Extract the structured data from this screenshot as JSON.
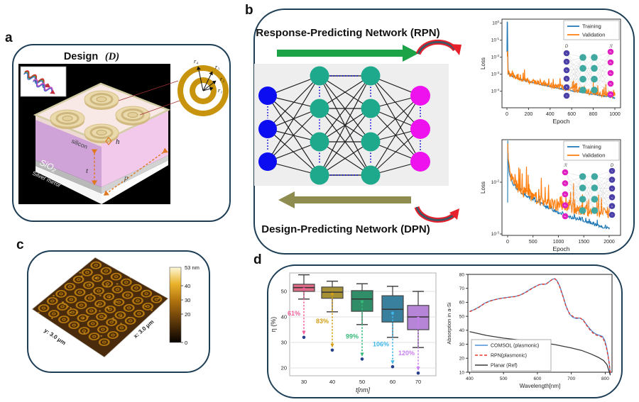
{
  "colors": {
    "panel_border": "#1e3e56",
    "input_node": "#0d0df2",
    "hidden_node": "#1fa98c",
    "output_node": "#ee12ee",
    "rpn_arrow": "#1ca347",
    "dpn_arrow": "#8f8c50",
    "flow_red": "#e8202c",
    "flow_core": "#3f5564",
    "outlier": "#27408b",
    "ring_gold": "#c8940e",
    "dim_orange": "#e07820"
  },
  "panels": {
    "a": {
      "label": "a",
      "title_word": "Design",
      "title_symbol": "(D)",
      "layers": {
        "silicon": "silicon",
        "sio2": "SiO₂",
        "mirror": "Silver mirror"
      },
      "dims": {
        "h": "h",
        "t": "t",
        "p": "p"
      },
      "radii": [
        "r₄",
        "r₃",
        "r₂",
        "r₁"
      ]
    },
    "b": {
      "label": "b",
      "rpn_title": "Response-Predicting Network (RPN)",
      "dpn_title": "Design-Predicting Network (DPN)",
      "network": {
        "input_nodes": 3,
        "hidden_layers": [
          4,
          4
        ],
        "output_nodes": 3
      }
    },
    "c": {
      "label": "c",
      "y_axis_label": "y: 3.0 μm",
      "x_axis_label": "x: 3.0 μm",
      "colorbar": {
        "labels": [
          "53 nm",
          "40",
          "30",
          "20",
          "0"
        ],
        "values": [
          53,
          40,
          30,
          20,
          0
        ],
        "max": 53,
        "unit": "nm"
      }
    },
    "d": {
      "label": "d"
    }
  },
  "chart_data": [
    {
      "id": "rpn_loss",
      "type": "line",
      "title": "",
      "xlabel": "Epoch",
      "ylabel": "Loss",
      "yscale": "log",
      "xlim": [
        -46,
        1053
      ],
      "xticks": [
        0,
        200,
        400,
        600,
        800,
        1000
      ],
      "ytick_exponents": [
        0,
        -1,
        -2,
        -3,
        -4
      ],
      "legend_position": "upper right",
      "series": [
        {
          "name": "Training",
          "color": "#1f77b4",
          "noise": 0.06,
          "points": [
            [
              0,
              0.02
            ],
            [
              2,
              1.15
            ],
            [
              5,
              1.15
            ],
            [
              8,
              0.02
            ],
            [
              12,
              0.0012
            ],
            [
              25,
              0.00085
            ],
            [
              60,
              0.0007
            ],
            [
              100,
              0.00056
            ],
            [
              150,
              0.00044
            ],
            [
              200,
              0.00037
            ],
            [
              300,
              0.00026
            ],
            [
              400,
              0.00019
            ],
            [
              500,
              0.00014
            ],
            [
              600,
              0.000105
            ],
            [
              700,
              8.5e-05
            ],
            [
              800,
              6.5e-05
            ],
            [
              900,
              5.2e-05
            ],
            [
              1000,
              4e-05
            ]
          ]
        },
        {
          "name": "Validation",
          "color": "#ff7f0e",
          "noise": 0.3,
          "points": [
            [
              4,
              0.013
            ],
            [
              7,
              0.009
            ],
            [
              9,
              0.0013
            ],
            [
              25,
              0.00095
            ],
            [
              60,
              0.00078
            ],
            [
              100,
              0.00062
            ],
            [
              150,
              0.0005
            ],
            [
              200,
              0.00042
            ],
            [
              300,
              0.0003
            ],
            [
              400,
              0.00022
            ],
            [
              500,
              0.000165
            ],
            [
              600,
              0.000125
            ],
            [
              700,
              0.0001
            ],
            [
              800,
              8e-05
            ],
            [
              900,
              6.3e-05
            ],
            [
              1000,
              5e-05
            ]
          ]
        }
      ],
      "inset": {
        "left_label": "D",
        "right_label": "ℛ",
        "left_nodes": [
          "r₁",
          "r₂",
          "r₃",
          "r₄",
          "h",
          "t"
        ],
        "right_nodes": [
          "A₁",
          "A₂",
          "A₃",
          "A₄",
          "Aₙ"
        ],
        "left_color": "#4b3fa8",
        "right_color": "#e01dc0",
        "hidden_color": "#3fa8a0"
      }
    },
    {
      "id": "dpn_loss",
      "type": "line",
      "title": "",
      "xlabel": "Epoch",
      "ylabel": "Loss",
      "yscale": "log",
      "xlim": [
        -112,
        2224
      ],
      "xticks": [
        0,
        500,
        1000,
        1500,
        2000
      ],
      "ytick_exponents": [
        -2,
        -3
      ],
      "legend_position": "upper right",
      "series": [
        {
          "name": "Training",
          "color": "#1f77b4",
          "noise": 0.05,
          "points": [
            [
              0,
              0.004
            ],
            [
              3,
              0.065
            ],
            [
              10,
              0.028
            ],
            [
              30,
              0.016
            ],
            [
              60,
              0.012
            ],
            [
              100,
              0.0095
            ],
            [
              200,
              0.0072
            ],
            [
              300,
              0.006
            ],
            [
              400,
              0.0052
            ],
            [
              500,
              0.0046
            ],
            [
              700,
              0.0036
            ],
            [
              1000,
              0.00255
            ],
            [
              1300,
              0.002
            ],
            [
              1600,
              0.00165
            ],
            [
              2000,
              0.00125
            ]
          ]
        },
        {
          "name": "Validation",
          "color": "#ff7f0e",
          "noise": 0.22,
          "points": [
            [
              3,
              0.05
            ],
            [
              10,
              0.03
            ],
            [
              30,
              0.018
            ],
            [
              60,
              0.0135
            ],
            [
              100,
              0.0105
            ],
            [
              200,
              0.008
            ],
            [
              300,
              0.0066
            ],
            [
              400,
              0.0058
            ],
            [
              500,
              0.0052
            ],
            [
              700,
              0.0043
            ],
            [
              1000,
              0.0035
            ],
            [
              1300,
              0.0031
            ],
            [
              1600,
              0.0028
            ],
            [
              2000,
              0.0026
            ]
          ]
        }
      ],
      "inset": {
        "left_label": "ℛ",
        "right_label": "D",
        "left_nodes": [
          "A₁",
          "A₂",
          "A₃",
          "A₄",
          "Aₙ"
        ],
        "right_nodes": [
          "r₁",
          "r₂",
          "r₃",
          "r₄",
          "h",
          "t"
        ],
        "left_color": "#e01dc0",
        "right_color": "#4b3fa8",
        "hidden_color": "#3fa8a0"
      }
    },
    {
      "id": "efficiency_box",
      "type": "box",
      "xlabel": "t[nm]",
      "ylabel": "η (%)",
      "yticks": [
        20,
        30,
        40,
        50
      ],
      "categories": [
        30,
        40,
        50,
        60,
        70
      ],
      "outlier_color": "#27408b",
      "boxes": [
        {
          "t": 30,
          "whisker_low": 47,
          "q1": 50,
          "median": 51.5,
          "q3": 52.8,
          "whisker_high": 56.5,
          "mean": 51,
          "outlier": 32,
          "enhancement_label": "61%",
          "box_color": "#e06c87",
          "accent_color": "#f0609a",
          "label_y": 40.5
        },
        {
          "t": 40,
          "whisker_low": 42,
          "q1": 47.3,
          "median": 49.7,
          "q3": 51.7,
          "whisker_high": 54,
          "mean": 49,
          "outlier": 27,
          "enhancement_label": "83%",
          "box_color": "#a59036",
          "accent_color": "#d4a017",
          "label_y": 37.5
        },
        {
          "t": 50,
          "whisker_low": 37,
          "q1": 42.2,
          "median": 47,
          "q3": 50.3,
          "whisker_high": 53,
          "mean": 46,
          "outlier": 23.5,
          "enhancement_label": "99%",
          "box_color": "#2f8e68",
          "accent_color": "#35b878",
          "label_y": 31.5
        },
        {
          "t": 60,
          "whisker_low": 32,
          "q1": 38,
          "median": 43,
          "q3": 48.3,
          "whisker_high": 52,
          "mean": 41.5,
          "outlier": 20.5,
          "enhancement_label": "106%",
          "box_color": "#39809e",
          "accent_color": "#3fb6e8",
          "label_y": 28.5
        },
        {
          "t": 70,
          "whisker_low": 28,
          "q1": 35,
          "median": 40,
          "q3": 44.5,
          "whisker_high": 50,
          "mean": 39.5,
          "outlier": 18,
          "enhancement_label": "120%",
          "box_color": "#b685d8",
          "accent_color": "#c97ef0",
          "label_y": 25
        }
      ]
    },
    {
      "id": "absorption",
      "type": "line",
      "xlabel": "Wavelength[nm]",
      "ylabel": "Absorption in a-Si",
      "xticks": [
        400,
        500,
        600,
        700,
        800
      ],
      "yticks": [
        10,
        20,
        30,
        40,
        50,
        60,
        70,
        80
      ],
      "legend_position": "lower left",
      "series": [
        {
          "name": "COMSOL (plasmonic)",
          "color": "#4a90d9",
          "style": "solid",
          "points": [
            [
              400,
              53.5
            ],
            [
              415,
              55
            ],
            [
              430,
              57
            ],
            [
              445,
              59.5
            ],
            [
              460,
              61
            ],
            [
              475,
              62
            ],
            [
              490,
              62.8
            ],
            [
              505,
              63.3
            ],
            [
              520,
              63.8
            ],
            [
              535,
              64.2
            ],
            [
              550,
              65.3
            ],
            [
              565,
              67.2
            ],
            [
              580,
              69.5
            ],
            [
              595,
              71.5
            ],
            [
              605,
              72.7
            ],
            [
              615,
              73.1
            ],
            [
              625,
              73
            ],
            [
              635,
              74.8
            ],
            [
              645,
              76.6
            ],
            [
              652,
              76.9
            ],
            [
              658,
              75.5
            ],
            [
              665,
              72
            ],
            [
              675,
              65
            ],
            [
              685,
              57
            ],
            [
              695,
              51.5
            ],
            [
              705,
              49.2
            ],
            [
              715,
              48.4
            ],
            [
              725,
              48.8
            ],
            [
              735,
              47.5
            ],
            [
              745,
              44
            ],
            [
              755,
              41
            ],
            [
              765,
              38.5
            ],
            [
              775,
              37
            ],
            [
              785,
              36.2
            ],
            [
              792,
              35.6
            ],
            [
              798,
              33
            ],
            [
              803,
              29
            ],
            [
              808,
              23
            ],
            [
              812,
              15
            ],
            [
              815,
              8.5
            ]
          ]
        },
        {
          "name": "RPN(plasmonic)",
          "color": "#e63329",
          "style": "dashed",
          "points": [
            [
              400,
              53.3
            ],
            [
              415,
              54.8
            ],
            [
              430,
              56.8
            ],
            [
              445,
              59.3
            ],
            [
              460,
              60.8
            ],
            [
              475,
              61.9
            ],
            [
              490,
              62.7
            ],
            [
              505,
              63.2
            ],
            [
              520,
              63.7
            ],
            [
              535,
              64.1
            ],
            [
              550,
              65.2
            ],
            [
              565,
              67
            ],
            [
              580,
              69.3
            ],
            [
              595,
              71.4
            ],
            [
              605,
              72.6
            ],
            [
              615,
              73
            ],
            [
              625,
              72.9
            ],
            [
              635,
              74.9
            ],
            [
              645,
              76.5
            ],
            [
              652,
              76.8
            ],
            [
              658,
              75.2
            ],
            [
              665,
              71.5
            ],
            [
              675,
              64.5
            ],
            [
              685,
              56.5
            ],
            [
              695,
              51.8
            ],
            [
              705,
              49.8
            ],
            [
              715,
              48.8
            ],
            [
              725,
              49
            ],
            [
              735,
              47.2
            ],
            [
              745,
              43.5
            ],
            [
              755,
              40.3
            ],
            [
              765,
              37.8
            ],
            [
              775,
              36.4
            ],
            [
              785,
              35.7
            ],
            [
              792,
              35
            ],
            [
              798,
              32
            ],
            [
              803,
              28
            ],
            [
              808,
              22
            ],
            [
              812,
              16
            ],
            [
              815,
              9
            ]
          ]
        },
        {
          "name": "Planar (Ref)",
          "color": "#3a3a3a",
          "style": "solid",
          "points": [
            [
              400,
              39
            ],
            [
              450,
              36.3
            ],
            [
              500,
              34.4
            ],
            [
              550,
              33
            ],
            [
              600,
              31.4
            ],
            [
              650,
              29.8
            ],
            [
              700,
              27.4
            ],
            [
              730,
              25.6
            ],
            [
              760,
              22.8
            ],
            [
              780,
              20.6
            ],
            [
              795,
              18.4
            ],
            [
              805,
              15.5
            ],
            [
              815,
              7.8
            ]
          ]
        }
      ]
    }
  ]
}
